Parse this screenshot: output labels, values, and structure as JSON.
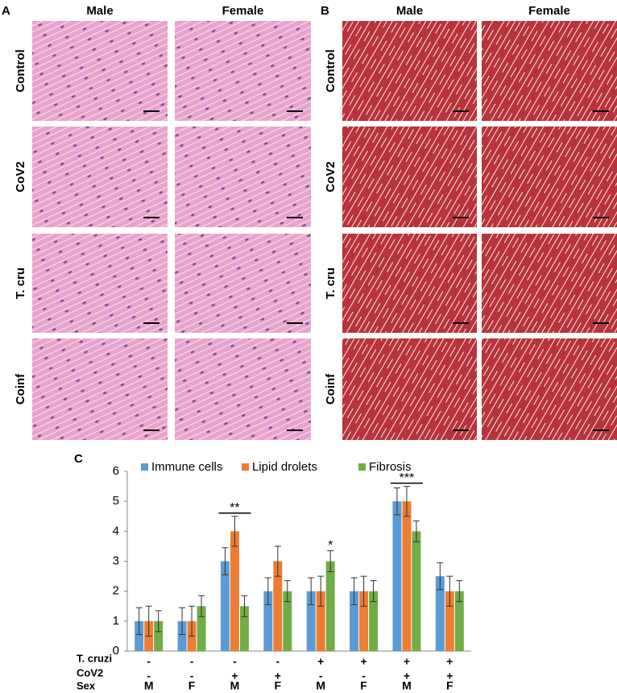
{
  "panels": {
    "a": {
      "letter": "A",
      "columns": [
        "Male",
        "Female"
      ],
      "rows": [
        "Control",
        "CoV2",
        "T. cru",
        "Coinf"
      ]
    },
    "b": {
      "letter": "B",
      "columns": [
        "Male",
        "Female"
      ],
      "rows": [
        "Control",
        "CoV2",
        "T. cru",
        "Coinf"
      ]
    },
    "c": {
      "letter": "C"
    }
  },
  "chart_data": {
    "type": "bar",
    "categories": [
      null,
      null,
      null,
      null,
      null,
      null,
      null,
      null
    ],
    "series": [
      {
        "name": "Immune cells",
        "color": "#5b9bd5",
        "values": [
          1,
          1,
          3,
          2,
          2,
          2,
          5,
          2.5
        ],
        "errors": [
          0.45,
          0.45,
          0.45,
          0.45,
          0.45,
          0.45,
          0.45,
          0.45
        ]
      },
      {
        "name": "Lipid drolets",
        "color": "#ed7d31",
        "values": [
          1,
          1,
          4,
          3,
          2,
          2,
          5,
          2
        ],
        "errors": [
          0.5,
          0.5,
          0.5,
          0.5,
          0.5,
          0.5,
          0.5,
          0.5
        ]
      },
      {
        "name": "Fibrosis",
        "color": "#70ad47",
        "values": [
          1,
          1.5,
          1.5,
          2,
          3,
          2,
          4,
          2
        ],
        "errors": [
          0.35,
          0.35,
          0.35,
          0.35,
          0.35,
          0.35,
          0.35,
          0.35
        ]
      }
    ],
    "ylim": [
      0,
      6
    ],
    "yticks": [
      0,
      1,
      2,
      3,
      4,
      5,
      6
    ],
    "annotations": [
      "**",
      "*",
      "***"
    ],
    "conditions": [
      {
        "label": "T. cruzi",
        "values": [
          "-",
          "-",
          "-",
          "-",
          "+",
          "+",
          "+",
          "+"
        ]
      },
      {
        "label": "CoV2",
        "values": [
          "-",
          "-",
          "+",
          "+",
          "-",
          "-",
          "+",
          "+"
        ]
      },
      {
        "label": "Sex",
        "values": [
          "M",
          "F",
          "M",
          "F",
          "M",
          "F",
          "M",
          "F"
        ]
      }
    ]
  }
}
